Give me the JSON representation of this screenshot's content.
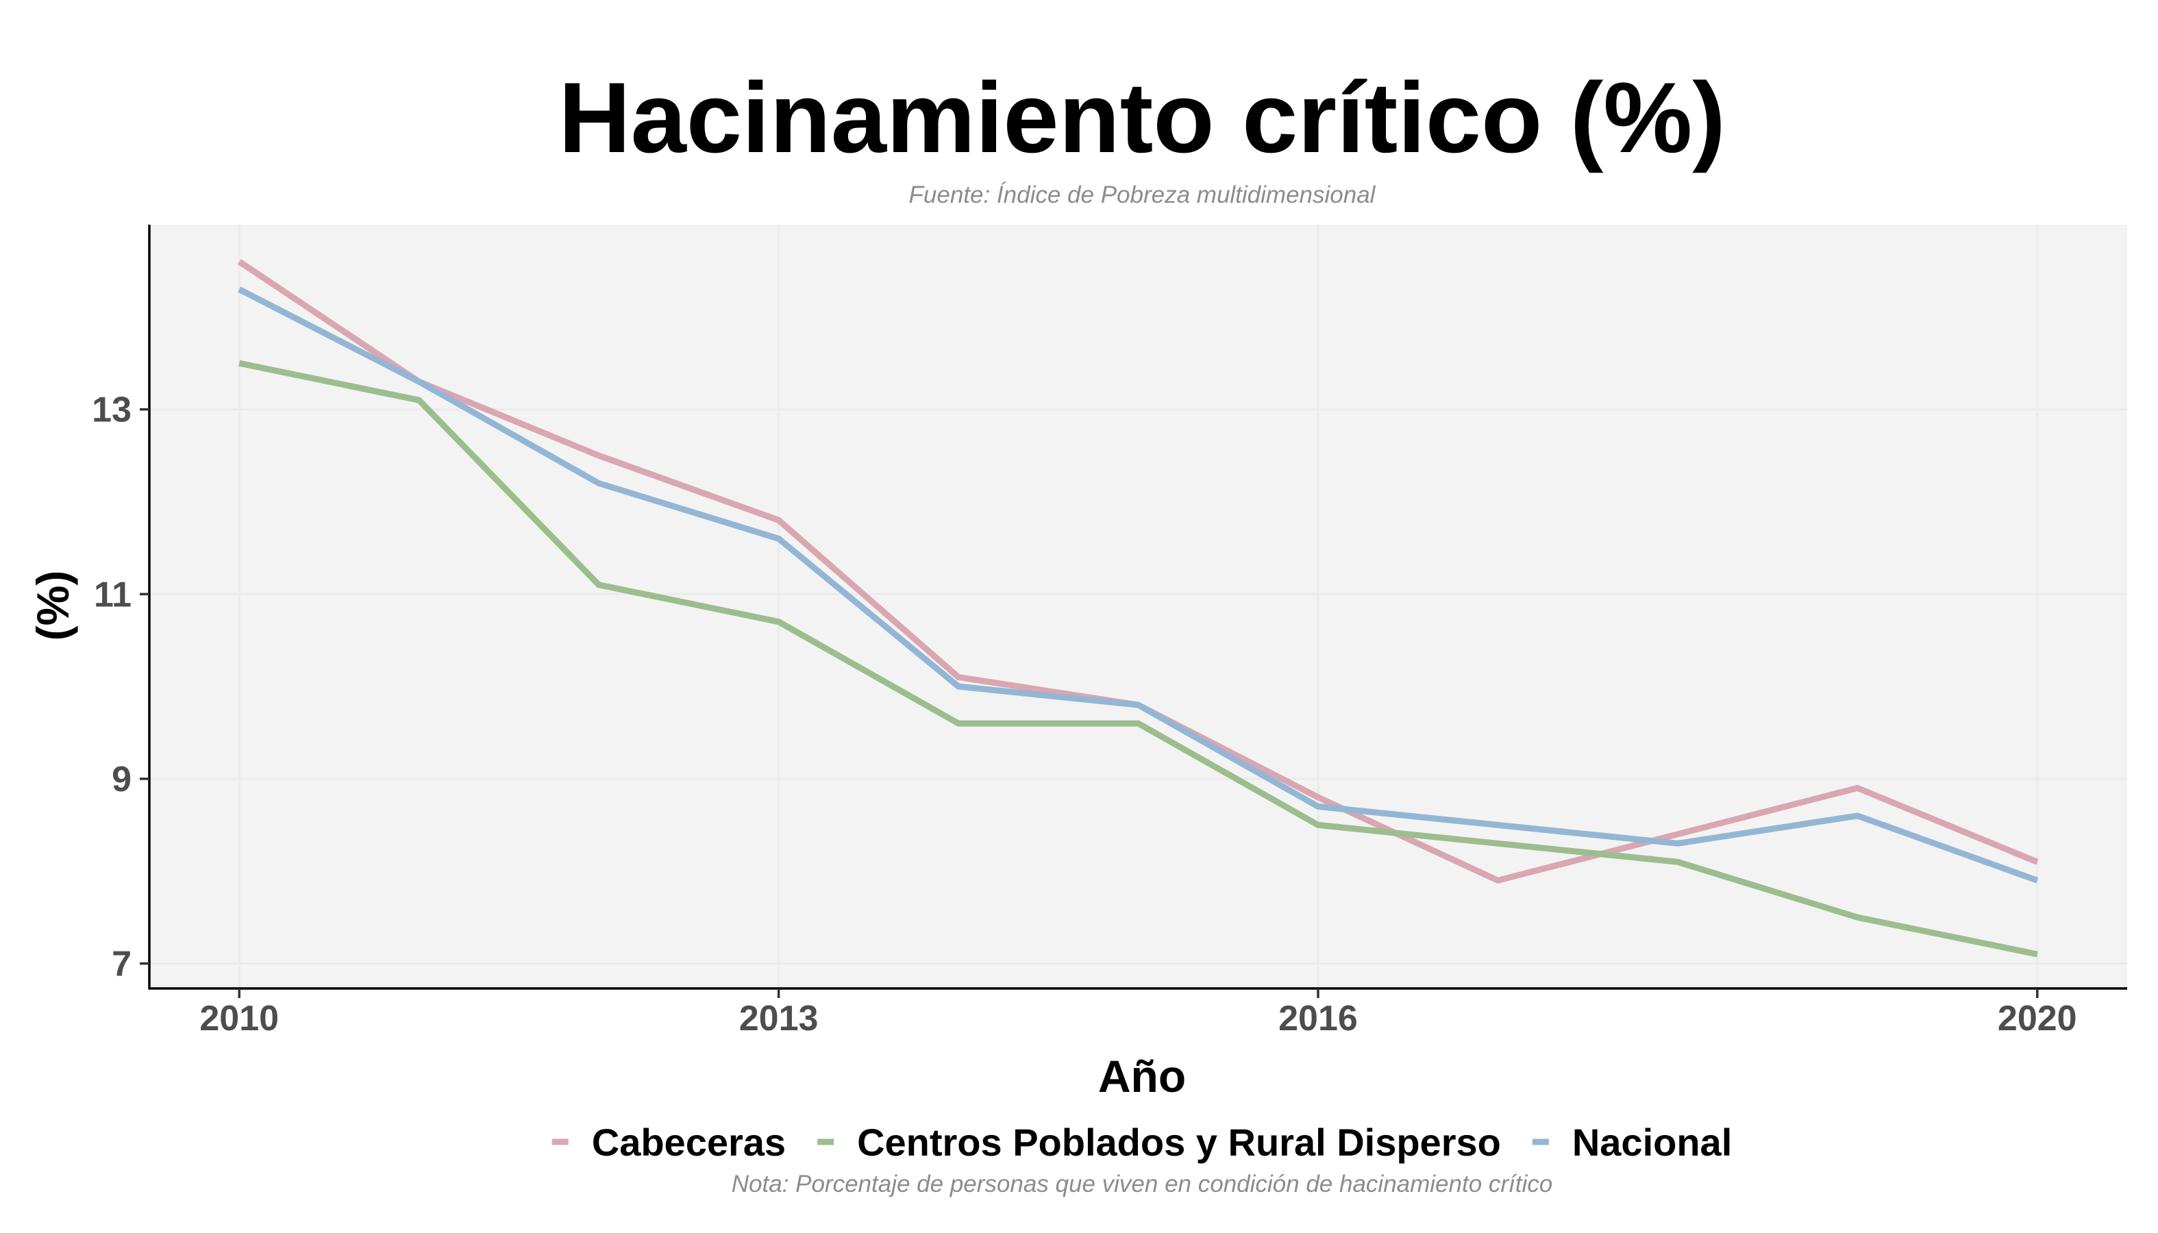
{
  "chart_data": {
    "type": "line",
    "title": "Hacinamiento crítico (%)",
    "subtitle": "Fuente: Índice de Pobreza multidimensional",
    "xlabel": "Año",
    "ylabel": "(%)",
    "caption": "Nota: Porcentaje de personas que viven en condición de hacinamiento crítico",
    "x": [
      2010,
      2011,
      2012,
      2013,
      2014,
      2015,
      2016,
      2017,
      2018,
      2019,
      2020
    ],
    "xticks": [
      "2010",
      "2013",
      "2016",
      "2020"
    ],
    "yticks": [
      "7",
      "9",
      "11",
      "13"
    ],
    "xlim": [
      2009.5,
      2020.5
    ],
    "ylim": [
      6.73,
      15.0
    ],
    "grid": true,
    "legend_position": "bottom",
    "series": [
      {
        "name": "Cabeceras",
        "color": "#d9a6b1",
        "values": [
          14.6,
          13.3,
          12.5,
          11.8,
          10.1,
          9.8,
          8.8,
          7.9,
          8.4,
          8.9,
          8.1
        ]
      },
      {
        "name": "Centros Poblados y Rural Disperso",
        "color": "#9cbd8d",
        "values": [
          13.5,
          13.1,
          11.1,
          10.7,
          9.6,
          9.6,
          8.5,
          8.3,
          8.1,
          7.5,
          7.1
        ]
      },
      {
        "name": "Nacional",
        "color": "#94b6d5",
        "values": [
          14.3,
          13.3,
          12.2,
          11.6,
          10.0,
          9.8,
          8.7,
          8.5,
          8.3,
          8.6,
          7.9
        ]
      }
    ],
    "panel_color": "#f3f3f3",
    "grid_color": "#ebebeb"
  }
}
